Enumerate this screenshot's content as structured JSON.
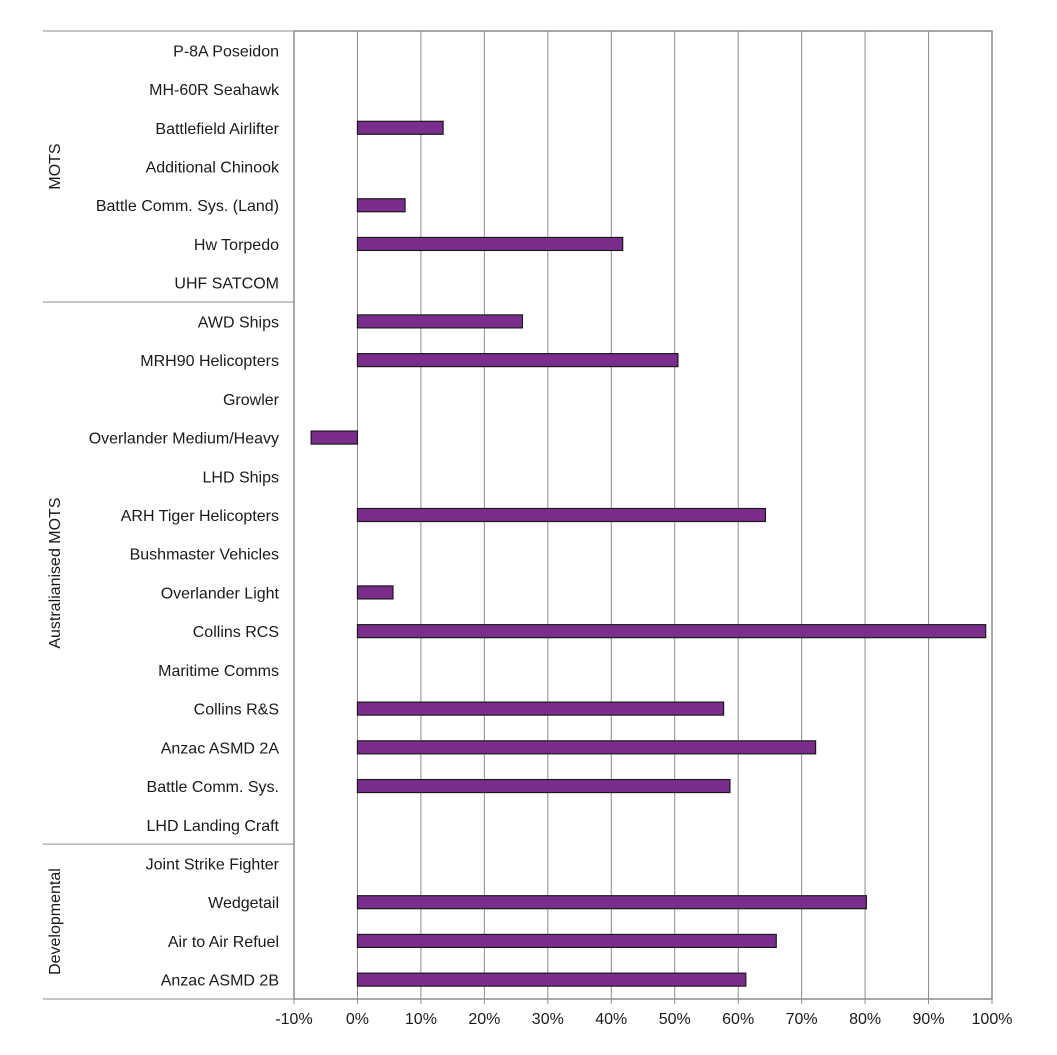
{
  "chart_data": {
    "type": "bar",
    "orientation": "horizontal",
    "title": "",
    "xlabel": "",
    "ylabel": "",
    "xlim": [
      -10,
      100
    ],
    "x_ticks": [
      -10,
      0,
      10,
      20,
      30,
      40,
      50,
      60,
      70,
      80,
      90,
      100
    ],
    "x_tick_labels": [
      "-10%",
      "0%",
      "10%",
      "20%",
      "30%",
      "40%",
      "50%",
      "60%",
      "70%",
      "80%",
      "90%",
      "100%"
    ],
    "grid": "vertical",
    "legend": "none",
    "bar_color": "#7b2d8e",
    "bar_edge_color": "#1a1a1a",
    "categories": [
      "P-8A Poseidon",
      "MH-60R Seahawk",
      "Battlefield Airlifter",
      "Additional Chinook",
      "Battle Comm. Sys. (Land)",
      "Hw Torpedo",
      "UHF SATCOM",
      "AWD Ships",
      "MRH90 Helicopters",
      "Growler",
      "Overlander Medium/Heavy",
      "LHD Ships",
      "ARH Tiger Helicopters",
      "Bushmaster Vehicles",
      "Overlander Light",
      "Collins RCS",
      "Maritime Comms",
      "Collins R&S",
      "Anzac ASMD 2A",
      "Battle Comm. Sys.",
      "LHD Landing Craft",
      "Joint Strike Fighter",
      "Wedgetail",
      "Air to Air Refuel",
      "Anzac ASMD 2B"
    ],
    "values": [
      0,
      0,
      13.5,
      0,
      7.5,
      41.8,
      0,
      26,
      50.5,
      0,
      -7.3,
      0,
      64.3,
      0,
      5.6,
      99,
      0,
      57.7,
      72.2,
      58.7,
      0,
      0,
      80.2,
      66,
      61.2
    ],
    "groups": [
      {
        "label": "MOTS",
        "start": 0,
        "end": 6
      },
      {
        "label": "Australianised MOTS",
        "start": 7,
        "end": 20
      },
      {
        "label": "Developmental",
        "start": 21,
        "end": 24
      }
    ]
  }
}
